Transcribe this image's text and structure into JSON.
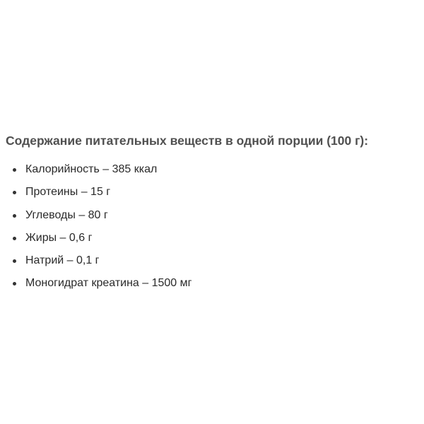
{
  "heading": "Содержание питательных веществ в одной порции (100 г):",
  "items": [
    "Калорийность – 385 ккал",
    "Протеины – 15 г",
    "Углеводы – 80 г",
    "Жиры – 0,6 г",
    "Натрий – 0,1 г",
    "Моногидрат креатина – 1500 мг"
  ]
}
